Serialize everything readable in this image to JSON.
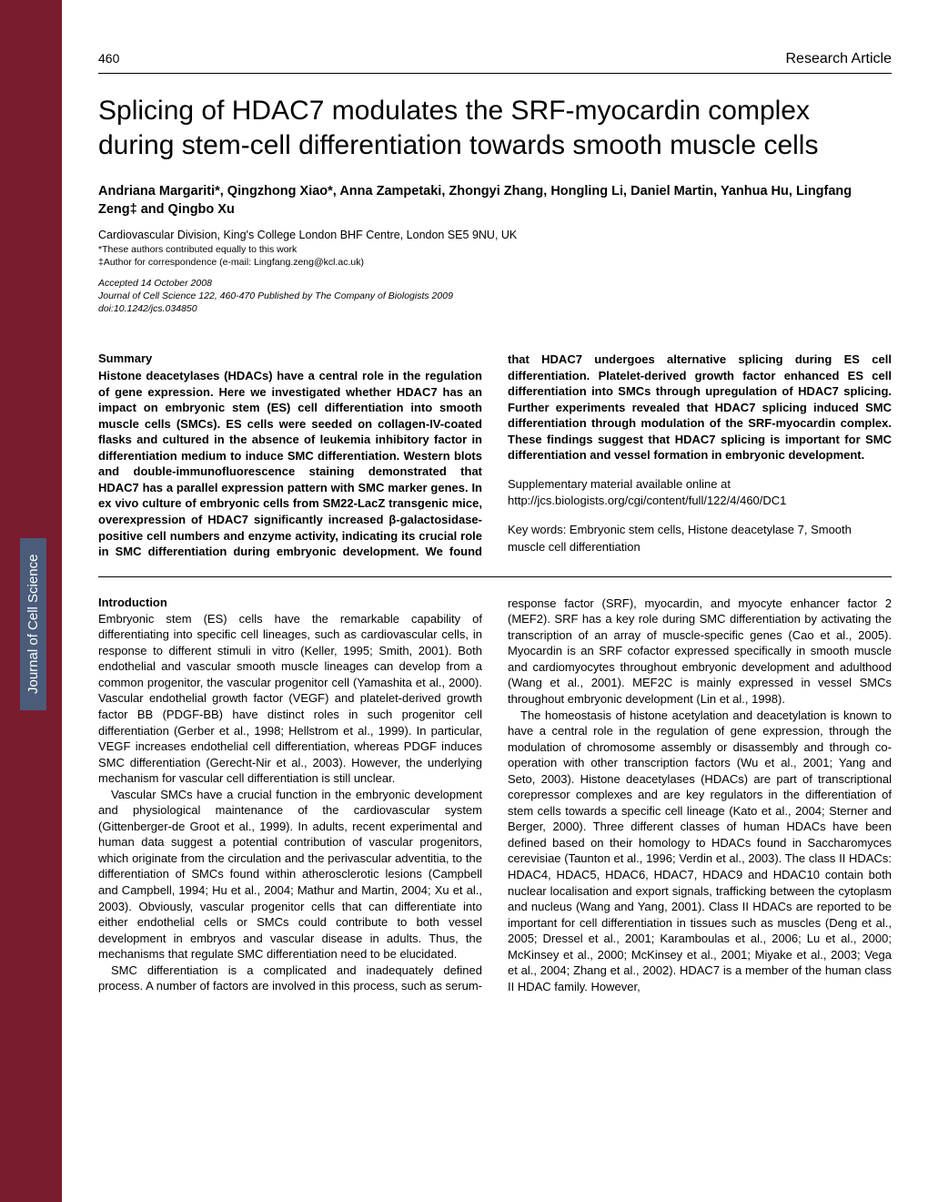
{
  "sidebar": {
    "vertical_label": "Journal of Cell Science",
    "bg_color": "#7a1b2e",
    "label_bg_color": "#4a5c7a"
  },
  "header": {
    "page_number": "460",
    "article_type": "Research Article"
  },
  "title": "Splicing of HDAC7 modulates the SRF-myocardin complex during stem-cell differentiation towards smooth muscle cells",
  "authors": "Andriana Margariti*, Qingzhong Xiao*, Anna Zampetaki, Zhongyi Zhang, Hongling Li, Daniel Martin, Yanhua Hu, Lingfang Zeng‡ and Qingbo Xu",
  "affiliation": "Cardiovascular Division, King's College London BHF Centre, London SE5 9NU, UK",
  "footnote1": "*These authors contributed equally to this work",
  "footnote2": "‡Author for correspondence (e-mail: Lingfang.zeng@kcl.ac.uk)",
  "meta": {
    "accepted": "Accepted 14 October 2008",
    "citation": "Journal of Cell Science 122, 460-470 Published by The Company of Biologists 2009",
    "doi": "doi:10.1242/jcs.034850"
  },
  "summary_heading": "Summary",
  "summary_text": "Histone deacetylases (HDACs) have a central role in the regulation of gene expression. Here we investigated whether HDAC7 has an impact on embryonic stem (ES) cell differentiation into smooth muscle cells (SMCs). ES cells were seeded on collagen-IV-coated flasks and cultured in the absence of leukemia inhibitory factor in differentiation medium to induce SMC differentiation. Western blots and double-immunofluorescence staining demonstrated that HDAC7 has a parallel expression pattern with SMC marker genes. In ex vivo culture of embryonic cells from SM22-LacZ transgenic mice, overexpression of HDAC7 significantly increased β-galactosidase-positive cell numbers and enzyme activity, indicating its crucial role in SMC differentiation during embryonic development. We found that HDAC7 undergoes alternative splicing during ES cell differentiation. Platelet-derived growth factor enhanced ES cell differentiation into SMCs through upregulation of HDAC7 splicing. Further experiments revealed that HDAC7 splicing induced SMC differentiation through modulation of the SRF-myocardin complex. These findings suggest that HDAC7 splicing is important for SMC differentiation and vessel formation in embryonic development.",
  "supplementary": "Supplementary material available online at http://jcs.biologists.org/cgi/content/full/122/4/460/DC1",
  "keywords": "Key words: Embryonic stem cells, Histone deacetylase 7, Smooth muscle cell differentiation",
  "intro_heading": "Introduction",
  "intro_p1": "Embryonic stem (ES) cells have the remarkable capability of differentiating into specific cell lineages, such as cardiovascular cells, in response to different stimuli in vitro (Keller, 1995; Smith, 2001). Both endothelial and vascular smooth muscle lineages can develop from a common progenitor, the vascular progenitor cell (Yamashita et al., 2000). Vascular endothelial growth factor (VEGF) and platelet-derived growth factor BB (PDGF-BB) have distinct roles in such progenitor cell differentiation (Gerber et al., 1998; Hellstrom et al., 1999). In particular, VEGF increases endothelial cell differentiation, whereas PDGF induces SMC differentiation (Gerecht-Nir et al., 2003). However, the underlying mechanism for vascular cell differentiation is still unclear.",
  "intro_p2": "Vascular SMCs have a crucial function in the embryonic development and physiological maintenance of the cardiovascular system (Gittenberger-de Groot et al., 1999). In adults, recent experimental and human data suggest a potential contribution of vascular progenitors, which originate from the circulation and the perivascular adventitia, to the differentiation of SMCs found within atherosclerotic lesions (Campbell and Campbell, 1994; Hu et al., 2004; Mathur and Martin, 2004; Xu et al., 2003). Obviously, vascular progenitor cells that can differentiate into either endothelial cells or SMCs could contribute to both vessel development in embryos and vascular disease in adults. Thus, the mechanisms that regulate SMC differentiation need to be elucidated.",
  "intro_p3": "SMC differentiation is a complicated and inadequately defined process. A number of factors are involved in this process, such as serum-response factor (SRF), myocardin, and myocyte enhancer factor 2 (MEF2). SRF has a key role during SMC differentiation by activating the transcription of an array of muscle-specific genes (Cao et al., 2005). Myocardin is an SRF cofactor expressed specifically in smooth muscle and cardiomyocytes throughout embryonic development and adulthood (Wang et al., 2001). MEF2C is mainly expressed in vessel SMCs throughout embryonic development (Lin et al., 1998).",
  "intro_p4": "The homeostasis of histone acetylation and deacetylation is known to have a central role in the regulation of gene expression, through the modulation of chromosome assembly or disassembly and through co-operation with other transcription factors (Wu et al., 2001; Yang and Seto, 2003). Histone deacetylases (HDACs) are part of transcriptional corepressor complexes and are key regulators in the differentiation of stem cells towards a specific cell lineage (Kato et al., 2004; Sterner and Berger, 2000). Three different classes of human HDACs have been defined based on their homology to HDACs found in Saccharomyces cerevisiae (Taunton et al., 1996; Verdin et al., 2003). The class II HDACs: HDAC4, HDAC5, HDAC6, HDAC7, HDAC9 and HDAC10 contain both nuclear localisation and export signals, trafficking between the cytoplasm and nucleus (Wang and Yang, 2001). Class II HDACs are reported to be important for cell differentiation in tissues such as muscles (Deng et al., 2005; Dressel et al., 2001; Karamboulas et al., 2006; Lu et al., 2000; McKinsey et al., 2000; McKinsey et al., 2001; Miyake et al., 2003; Vega et al., 2004; Zhang et al., 2002). HDAC7 is a member of the human class II HDAC family. However,"
}
